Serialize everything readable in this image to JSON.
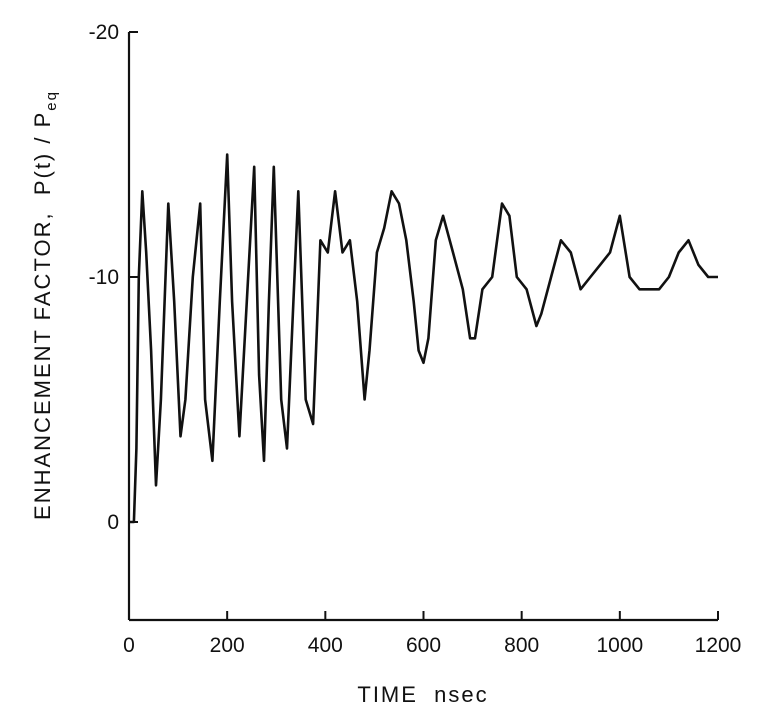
{
  "chart_data": {
    "type": "line",
    "title": "",
    "xlabel": "TIME  nsec",
    "ylabel_main": "ENHANCEMENT FACTOR,  P(t) / P",
    "ylabel_sub": "eq",
    "xlim": [
      0,
      1200
    ],
    "ylim": [
      4,
      -20
    ],
    "x_ticks": [
      "0",
      "200",
      "400",
      "600",
      "800",
      "1000",
      "1200"
    ],
    "y_ticks": [
      "0",
      "-10",
      "-20"
    ],
    "series": [
      {
        "x": [
          0,
          10,
          15,
          20,
          27,
          35,
          45,
          55,
          65,
          80,
          92,
          105,
          115,
          130,
          145,
          155,
          170,
          185,
          200,
          210,
          225,
          240,
          255,
          265,
          275,
          285,
          295,
          310,
          322,
          335,
          345,
          360,
          375,
          390,
          405,
          420,
          435,
          450,
          465,
          480,
          490,
          505,
          520,
          535,
          550,
          565,
          580,
          590,
          600,
          610,
          625,
          640,
          660,
          680,
          695,
          705,
          720,
          740,
          760,
          775,
          790,
          810,
          830,
          840,
          860,
          880,
          900,
          920,
          940,
          960,
          980,
          1000,
          1020,
          1040,
          1060,
          1080,
          1100,
          1120,
          1140,
          1160,
          1180,
          1200
        ],
        "y": [
          0,
          0,
          -3,
          -10,
          -13.5,
          -11,
          -7,
          -1.5,
          -5,
          -13,
          -9,
          -3.5,
          -5,
          -10,
          -13,
          -5,
          -2.5,
          -9,
          -15,
          -9,
          -3.5,
          -9,
          -14.5,
          -6,
          -2.5,
          -9,
          -14.5,
          -5,
          -3,
          -9,
          -13.5,
          -5,
          -4,
          -11.5,
          -11,
          -13.5,
          -11,
          -11.5,
          -9,
          -5,
          -7,
          -11,
          -12,
          -13.5,
          -13,
          -11.5,
          -9,
          -7,
          -6.5,
          -7.5,
          -11.5,
          -12.5,
          -11,
          -9.5,
          -7.5,
          -7.5,
          -9.5,
          -10,
          -13,
          -12.5,
          -10,
          -9.5,
          -8,
          -8.5,
          -10,
          -11.5,
          -11,
          -9.5,
          -10,
          -10.5,
          -11,
          -12.5,
          -10,
          -9.5,
          -9.5,
          -9.5,
          -10,
          -11,
          -11.5,
          -10.5,
          -10,
          -10
        ]
      }
    ]
  }
}
